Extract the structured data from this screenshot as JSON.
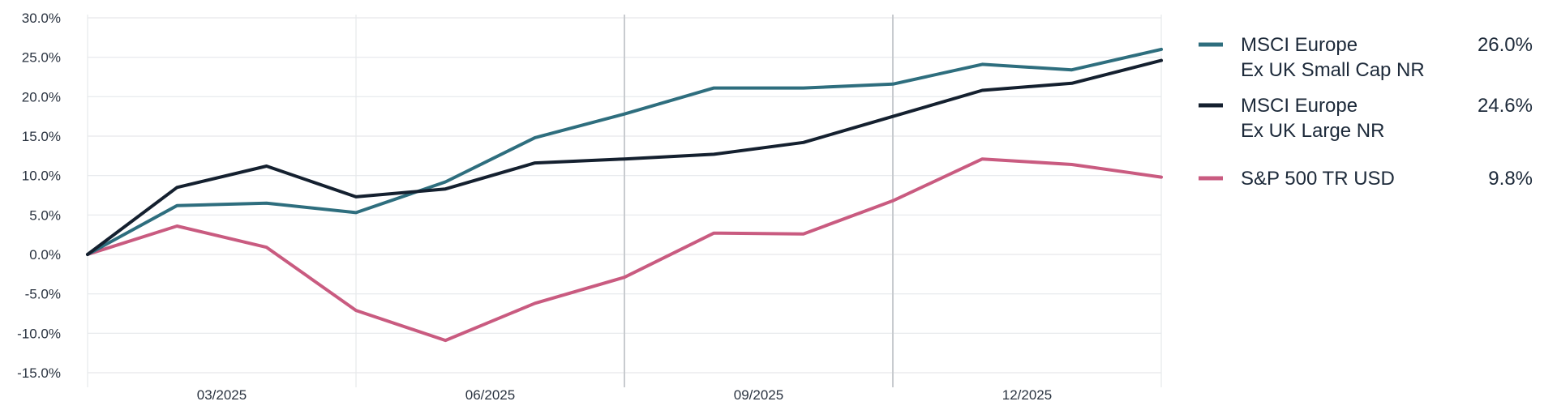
{
  "chart_data": {
    "type": "line",
    "x": [
      "2025-02",
      "2025-03",
      "2025-04",
      "2025-05",
      "2025-06",
      "2025-07",
      "2025-08",
      "2025-09",
      "2025-10",
      "2025-11",
      "2025-12",
      "2026-01",
      "2026-02"
    ],
    "x_tick_labels": [
      "03/2025",
      "06/2025",
      "09/2025",
      "12/2025"
    ],
    "y_tick_labels": [
      "30.0%",
      "25.0%",
      "20.0%",
      "15.0%",
      "10.0%",
      "5.0%",
      "0.0%",
      "-5.0%",
      "-10.0%",
      "-15.0%"
    ],
    "ylim": [
      -15,
      30
    ],
    "grid": true,
    "legend_position": "right",
    "series": [
      {
        "name": "MSCI Europe Ex UK Small Cap NR",
        "name_lines": [
          "MSCI Europe",
          "Ex UK Small Cap NR"
        ],
        "final_value_label": "26.0%",
        "color": "#2e6e7e",
        "values": [
          0.0,
          6.2,
          6.5,
          5.3,
          9.2,
          14.8,
          17.8,
          21.1,
          21.1,
          21.6,
          24.1,
          23.4,
          26.0
        ]
      },
      {
        "name": "MSCI Europe Ex UK Large NR",
        "name_lines": [
          "MSCI Europe",
          "Ex UK Large NR"
        ],
        "final_value_label": "24.6%",
        "color": "#14202f",
        "values": [
          0.0,
          8.5,
          11.2,
          7.3,
          8.3,
          11.6,
          12.1,
          12.7,
          14.2,
          17.5,
          20.8,
          21.7,
          24.6
        ]
      },
      {
        "name": "S&P 500 TR USD",
        "name_lines": [
          "S&P 500 TR USD"
        ],
        "final_value_label": "9.8%",
        "color": "#c95b80",
        "values": [
          0.0,
          3.6,
          0.9,
          -7.1,
          -10.9,
          -6.2,
          -2.9,
          2.7,
          2.6,
          6.8,
          12.1,
          11.4,
          9.8
        ]
      }
    ]
  }
}
